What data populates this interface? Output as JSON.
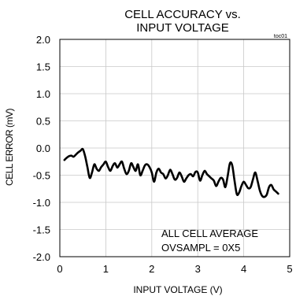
{
  "chart_data": {
    "type": "line",
    "title_line1": "CELL ACCURACY  vs.",
    "title_line2": "INPUT VOLTAGE",
    "figure_tag": "toc01",
    "xlabel": "INPUT VOLTAGE (V)",
    "ylabel": "CELL ERROR (mV)",
    "xlim": [
      0,
      5
    ],
    "ylim": [
      -2.0,
      2.0
    ],
    "x_ticks": [
      0,
      1,
      2,
      3,
      4,
      5
    ],
    "x_tick_labels": [
      "0",
      "1",
      "2",
      "3",
      "4",
      "5"
    ],
    "y_ticks": [
      2.0,
      1.5,
      1.0,
      0.5,
      0.0,
      -0.5,
      -1.0,
      -1.5,
      -2.0
    ],
    "y_tick_labels": [
      "2.0",
      "1.5",
      "1.0",
      "0.5",
      "0.0",
      "-0.5",
      "-1.0",
      "-1.5",
      "-2.0"
    ],
    "grid": true,
    "annotation_line1": "ALL CELL AVERAGE",
    "annotation_line2": "OVSAMPL = 0X5",
    "series": [
      {
        "x": [
          0.1,
          0.15,
          0.2,
          0.25,
          0.3,
          0.35,
          0.4,
          0.45,
          0.5,
          0.55,
          0.6,
          0.65,
          0.7,
          0.75,
          0.8,
          0.85,
          0.9,
          0.95,
          1.0,
          1.05,
          1.1,
          1.15,
          1.2,
          1.25,
          1.3,
          1.35,
          1.4,
          1.45,
          1.5,
          1.55,
          1.6,
          1.65,
          1.7,
          1.75,
          1.8,
          1.85,
          1.9,
          1.95,
          2.0,
          2.05,
          2.1,
          2.15,
          2.2,
          2.25,
          2.3,
          2.35,
          2.4,
          2.45,
          2.5,
          2.55,
          2.6,
          2.65,
          2.7,
          2.75,
          2.8,
          2.85,
          2.9,
          2.95,
          3.0,
          3.05,
          3.1,
          3.15,
          3.2,
          3.25,
          3.3,
          3.35,
          3.4,
          3.45,
          3.5,
          3.55,
          3.6,
          3.65,
          3.7,
          3.75,
          3.8,
          3.85,
          3.9,
          3.95,
          4.0,
          4.05,
          4.1,
          4.15,
          4.2,
          4.25,
          4.3,
          4.35,
          4.4,
          4.45,
          4.5,
          4.55,
          4.6,
          4.65,
          4.7,
          4.75
        ],
        "values": [
          -0.22,
          -0.18,
          -0.15,
          -0.14,
          -0.16,
          -0.12,
          -0.08,
          -0.05,
          -0.02,
          -0.15,
          -0.35,
          -0.55,
          -0.45,
          -0.3,
          -0.38,
          -0.42,
          -0.35,
          -0.3,
          -0.25,
          -0.35,
          -0.42,
          -0.33,
          -0.28,
          -0.36,
          -0.3,
          -0.25,
          -0.38,
          -0.48,
          -0.42,
          -0.28,
          -0.35,
          -0.42,
          -0.3,
          -0.5,
          -0.42,
          -0.32,
          -0.3,
          -0.35,
          -0.45,
          -0.62,
          -0.45,
          -0.38,
          -0.45,
          -0.48,
          -0.56,
          -0.5,
          -0.4,
          -0.48,
          -0.58,
          -0.55,
          -0.45,
          -0.52,
          -0.62,
          -0.56,
          -0.5,
          -0.48,
          -0.52,
          -0.44,
          -0.45,
          -0.6,
          -0.5,
          -0.42,
          -0.48,
          -0.52,
          -0.56,
          -0.6,
          -0.7,
          -0.62,
          -0.55,
          -0.58,
          -0.72,
          -0.52,
          -0.28,
          -0.32,
          -0.6,
          -0.85,
          -0.82,
          -0.7,
          -0.62,
          -0.68,
          -0.74,
          -0.72,
          -0.58,
          -0.45,
          -0.6,
          -0.78,
          -0.88,
          -0.9,
          -0.86,
          -0.72,
          -0.68,
          -0.76,
          -0.8,
          -0.84
        ]
      }
    ]
  }
}
